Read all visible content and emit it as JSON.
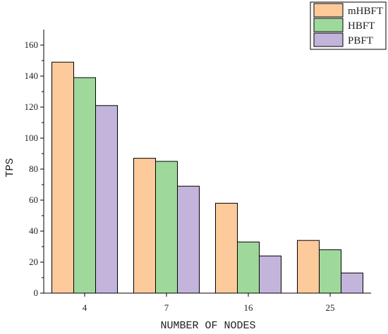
{
  "chart_data": {
    "type": "bar",
    "categories": [
      "4",
      "7",
      "16",
      "25"
    ],
    "series": [
      {
        "name": "mHBFT",
        "values": [
          149,
          87,
          58,
          34
        ],
        "color": "#FDCA9B"
      },
      {
        "name": "HBFT",
        "values": [
          139,
          85,
          33,
          28
        ],
        "color": "#9ED99B"
      },
      {
        "name": "PBFT",
        "values": [
          121,
          69,
          24,
          13
        ],
        "color": "#C2B4DB"
      }
    ],
    "title": "",
    "xlabel": "NUMBER OF NODES",
    "ylabel": "TPS",
    "ylim": [
      0,
      170
    ],
    "yticks": [
      0,
      20,
      40,
      60,
      80,
      100,
      120,
      140,
      160
    ],
    "grid": false,
    "legend_position": "top-right"
  }
}
